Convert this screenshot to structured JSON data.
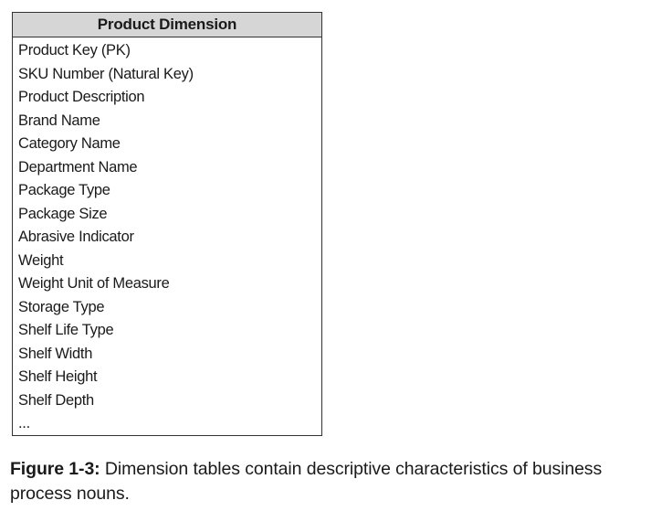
{
  "table": {
    "title": "Product Dimension",
    "attributes": [
      "Product Key (PK)",
      "SKU Number (Natural Key)",
      "Product Description",
      "Brand Name",
      "Category Name",
      "Department Name",
      "Package Type",
      "Package Size",
      "Abrasive Indicator",
      "Weight",
      "Weight Unit of Measure",
      "Storage Type",
      "Shelf Life Type",
      "Shelf Width",
      "Shelf Height",
      "Shelf Depth",
      "..."
    ]
  },
  "caption": {
    "label": "Figure 1-3:",
    "text": "Dimension tables contain descriptive characteristics of business process nouns."
  }
}
